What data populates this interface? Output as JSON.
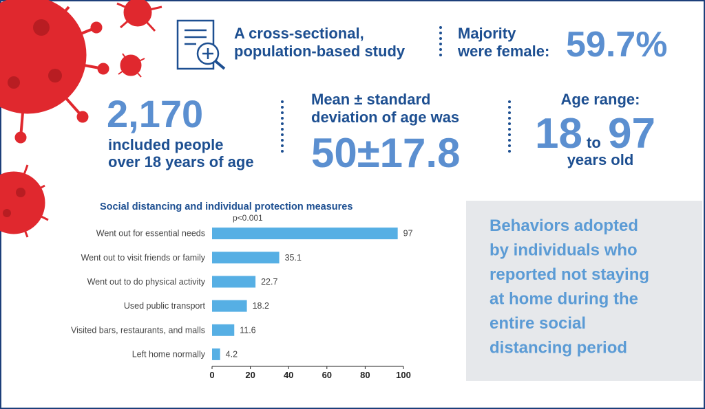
{
  "study": [
    "A cross-sectional,",
    "population-based study"
  ],
  "female": {
    "label": [
      "Majority",
      "were female:"
    ],
    "value": "59.7%"
  },
  "sample": {
    "value": "2,170",
    "label": [
      "included people",
      "over 18 years of age"
    ]
  },
  "mean_age": {
    "label": [
      "Mean ± standard",
      "deviation of age was"
    ],
    "value": "50±17.8"
  },
  "age_range": {
    "label": "Age range:",
    "min": "18",
    "joiner": "to",
    "max": "97",
    "unit": "years old"
  },
  "panel": [
    "Behaviors adopted",
    "by individuals who",
    "reported not staying",
    "at home during the",
    "entire social",
    "distancing period"
  ],
  "chart_data": {
    "type": "hbar",
    "title": "Social distancing and individual protection measures",
    "annotation": "p<0.001",
    "categories": [
      "Went out for essential needs",
      "Went out to visit friends or family",
      "Went out to do physical activity",
      "Used public transport",
      "Visited bars, restaurants, and malls",
      "Left home normally"
    ],
    "values": [
      97,
      35.1,
      22.7,
      18.2,
      11.6,
      4.2
    ],
    "color": "#56afe4",
    "xlim": [
      0,
      100
    ],
    "xticks": [
      0,
      20,
      40,
      60,
      80,
      100
    ]
  }
}
